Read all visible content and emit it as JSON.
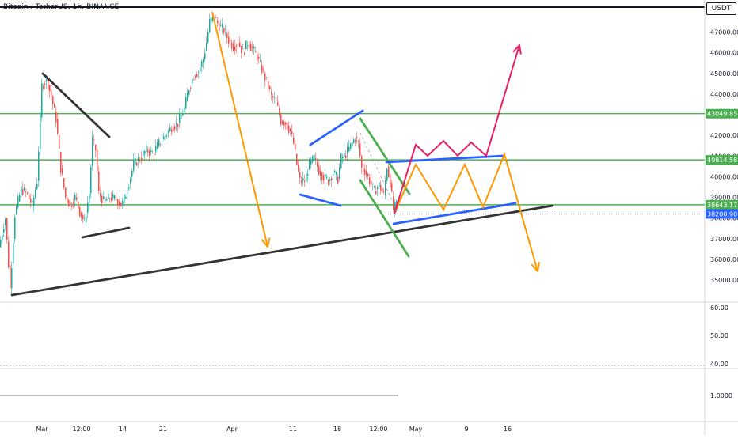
{
  "header": {
    "symbol_line": "Bitcoin / TetherUS, 1h, BINANCE",
    "currency": "USDT"
  },
  "chart_data": {
    "type": "line",
    "title": "Bitcoin / TetherUS, 1h, BINANCE",
    "price_axis": {
      "ticks": [
        35000,
        36000,
        37000,
        38000,
        39000,
        40000,
        41000,
        42000,
        43000,
        44000,
        45000,
        46000,
        47000
      ],
      "tick_labels": [
        "35000.00",
        "36000.00",
        "37000.00",
        "38000.00",
        "39000.00",
        "40000.00",
        "41000.00",
        "42000.00",
        "43000.00",
        "44000.00",
        "45000.00",
        "46000.00",
        "47000.00"
      ],
      "ylim": [
        34000,
        48500
      ]
    },
    "indicator_axis": {
      "tick_labels": [
        "60.00",
        "50.00",
        "40.00"
      ],
      "ticks": [
        60,
        50,
        40
      ]
    },
    "lower_axis": {
      "tick_labels": [
        "1.0000"
      ]
    },
    "time_axis": {
      "tick_labels": [
        "Mar",
        "12:00",
        "14",
        "21",
        "Apr",
        "11",
        "18",
        "12:00",
        "May",
        "9",
        "16"
      ]
    },
    "price_levels": [
      {
        "value": 43049.85,
        "label": "43049.85",
        "color": "#4caf50"
      },
      {
        "value": 40814.58,
        "label": "40814.58",
        "color": "#4caf50"
      },
      {
        "value": 38643.17,
        "label": "38643.17",
        "color": "#4caf50"
      },
      {
        "value": 38200.9,
        "label": "38200.90",
        "color": "#2962ff"
      }
    ],
    "price_series": {
      "name": "BTCUSDT",
      "anchors": [
        [
          0,
          36600
        ],
        [
          8,
          38000
        ],
        [
          14,
          34600
        ],
        [
          20,
          38200
        ],
        [
          28,
          39400
        ],
        [
          35,
          39200
        ],
        [
          42,
          38600
        ],
        [
          48,
          39800
        ],
        [
          54,
          44400
        ],
        [
          60,
          44700
        ],
        [
          66,
          43900
        ],
        [
          72,
          42800
        ],
        [
          78,
          40400
        ],
        [
          84,
          39000
        ],
        [
          90,
          38600
        ],
        [
          96,
          39000
        ],
        [
          102,
          38300
        ],
        [
          108,
          37800
        ],
        [
          114,
          39200
        ],
        [
          118,
          41800
        ],
        [
          122,
          41300
        ],
        [
          126,
          39200
        ],
        [
          132,
          38800
        ],
        [
          140,
          39000
        ],
        [
          148,
          38900
        ],
        [
          155,
          38600
        ],
        [
          162,
          39400
        ],
        [
          170,
          40600
        ],
        [
          178,
          40900
        ],
        [
          186,
          41300
        ],
        [
          194,
          41100
        ],
        [
          202,
          41600
        ],
        [
          210,
          42000
        ],
        [
          218,
          42400
        ],
        [
          226,
          42600
        ],
        [
          234,
          43300
        ],
        [
          240,
          44300
        ],
        [
          246,
          44900
        ],
        [
          252,
          45100
        ],
        [
          258,
          45700
        ],
        [
          262,
          46500
        ],
        [
          266,
          47500
        ],
        [
          272,
          47700
        ],
        [
          278,
          47300
        ],
        [
          284,
          47100
        ],
        [
          290,
          46600
        ],
        [
          296,
          46300
        ],
        [
          302,
          46500
        ],
        [
          308,
          46000
        ],
        [
          314,
          46500
        ],
        [
          320,
          46200
        ],
        [
          326,
          45800
        ],
        [
          332,
          45200
        ],
        [
          338,
          44600
        ],
        [
          344,
          43900
        ],
        [
          350,
          43600
        ],
        [
          356,
          42700
        ],
        [
          362,
          42600
        ],
        [
          368,
          42200
        ],
        [
          372,
          41600
        ],
        [
          376,
          40600
        ],
        [
          380,
          39800
        ],
        [
          386,
          39800
        ],
        [
          392,
          40600
        ],
        [
          398,
          40900
        ],
        [
          404,
          40300
        ],
        [
          410,
          40000
        ],
        [
          416,
          39800
        ],
        [
          422,
          40200
        ],
        [
          428,
          39900
        ],
        [
          432,
          40900
        ],
        [
          438,
          41100
        ],
        [
          444,
          41500
        ],
        [
          450,
          41900
        ],
        [
          454,
          41600
        ],
        [
          458,
          40400
        ],
        [
          462,
          40300
        ],
        [
          468,
          39800
        ],
        [
          474,
          39300
        ],
        [
          480,
          39600
        ],
        [
          486,
          39100
        ],
        [
          490,
          40500
        ],
        [
          494,
          39700
        ],
        [
          498,
          38400
        ],
        [
          503,
          38700
        ]
      ]
    },
    "lower_series": {
      "anchors": [
        [
          0,
          1.0
        ],
        [
          60,
          1.0
        ],
        [
          120,
          1.0
        ],
        [
          180,
          1.0
        ],
        [
          240,
          1.0
        ],
        [
          300,
          1.0
        ],
        [
          360,
          1.0
        ],
        [
          420,
          1.0
        ],
        [
          503,
          1.0
        ]
      ]
    },
    "drawings": [
      {
        "name": "support-trendline",
        "color": "#333333",
        "points": [
          [
            15,
            373
          ],
          [
            698,
            260
          ]
        ]
      },
      {
        "name": "downtrend-line-left",
        "color": "#333333",
        "points": [
          [
            54,
            93
          ],
          [
            138,
            173
          ]
        ]
      },
      {
        "name": "base-line-left",
        "color": "#333333",
        "points": [
          [
            104,
            300
          ],
          [
            163,
            288
          ]
        ]
      },
      {
        "name": "blue-upper-wedge",
        "color": "#2962ff",
        "points": [
          [
            392,
            183
          ],
          [
            458,
            140
          ]
        ]
      },
      {
        "name": "blue-lower-wedge",
        "color": "#2962ff",
        "points": [
          [
            379,
            246
          ],
          [
            430,
            260
          ]
        ]
      },
      {
        "name": "green-channel-upper",
        "color": "#4caf50",
        "points": [
          [
            455,
            150
          ],
          [
            517,
            245
          ]
        ]
      },
      {
        "name": "green-channel-lower",
        "color": "#4caf50",
        "points": [
          [
            455,
            228
          ],
          [
            516,
            324
          ]
        ]
      },
      {
        "name": "blue-flag-top",
        "color": "#2962ff",
        "points": [
          [
            488,
            205
          ],
          [
            636,
            197
          ]
        ]
      },
      {
        "name": "blue-flag-bottom",
        "color": "#2962ff",
        "points": [
          [
            497,
            283
          ],
          [
            651,
            257
          ]
        ]
      }
    ],
    "scenarios": [
      {
        "name": "orange-drop-arrow",
        "color": "#ff9800",
        "points": [
          [
            268,
            15
          ],
          [
            338,
            312
          ]
        ],
        "arrow": true
      },
      {
        "name": "orange-bear-scenario",
        "color": "#ff9800",
        "points": [
          [
            498,
            270
          ],
          [
            525,
            208
          ],
          [
            560,
            265
          ],
          [
            587,
            208
          ],
          [
            610,
            262
          ],
          [
            637,
            195
          ],
          [
            679,
            343
          ]
        ],
        "arrow": true
      },
      {
        "name": "red-bull-scenario",
        "color": "#e91e63",
        "points": [
          [
            498,
            270
          ],
          [
            525,
            183
          ],
          [
            540,
            197
          ],
          [
            560,
            178
          ],
          [
            578,
            197
          ],
          [
            595,
            180
          ],
          [
            614,
            197
          ],
          [
            656,
            57
          ]
        ],
        "arrow": true
      }
    ],
    "grid": false,
    "legend": "none"
  }
}
